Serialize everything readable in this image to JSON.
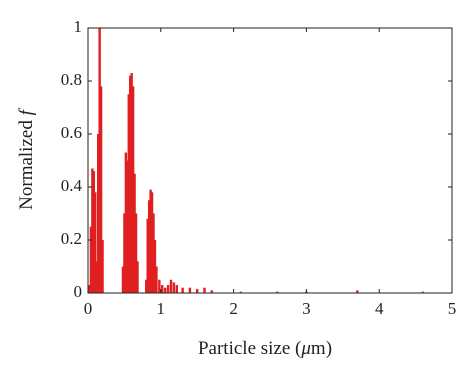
{
  "chart_data": {
    "type": "bar",
    "xlabel": [
      "Particle size (",
      "μ",
      "m)"
    ],
    "ylabel": [
      "Normalized ",
      "f"
    ],
    "x": [
      0.02,
      0.04,
      0.06,
      0.08,
      0.1,
      0.12,
      0.14,
      0.16,
      0.18,
      0.2,
      0.48,
      0.5,
      0.52,
      0.54,
      0.56,
      0.58,
      0.6,
      0.62,
      0.64,
      0.66,
      0.68,
      0.8,
      0.82,
      0.84,
      0.86,
      0.88,
      0.9,
      0.92,
      0.94,
      0.98,
      1.02,
      1.06,
      1.1,
      1.14,
      1.18,
      1.22,
      1.3,
      1.4,
      1.5,
      1.6,
      1.7,
      2.1,
      2.6,
      3.0,
      3.7,
      4.6
    ],
    "values": [
      0.03,
      0.25,
      0.47,
      0.46,
      0.38,
      0.12,
      0.6,
      1.0,
      0.78,
      0.2,
      0.1,
      0.3,
      0.53,
      0.5,
      0.75,
      0.82,
      0.83,
      0.78,
      0.45,
      0.3,
      0.12,
      0.05,
      0.28,
      0.35,
      0.39,
      0.38,
      0.3,
      0.2,
      0.1,
      0.05,
      0.03,
      0.02,
      0.03,
      0.05,
      0.04,
      0.03,
      0.02,
      0.02,
      0.015,
      0.02,
      0.01,
      0.005,
      0.005,
      0.005,
      0.01,
      0.005
    ],
    "color": "#e02020",
    "xlim": [
      0,
      5
    ],
    "xticks": [
      0,
      1,
      2,
      3,
      4,
      5
    ],
    "ylim": [
      0,
      1
    ],
    "yticks": [
      0,
      0.2,
      0.4,
      0.6,
      0.8,
      1
    ],
    "grid": false
  }
}
